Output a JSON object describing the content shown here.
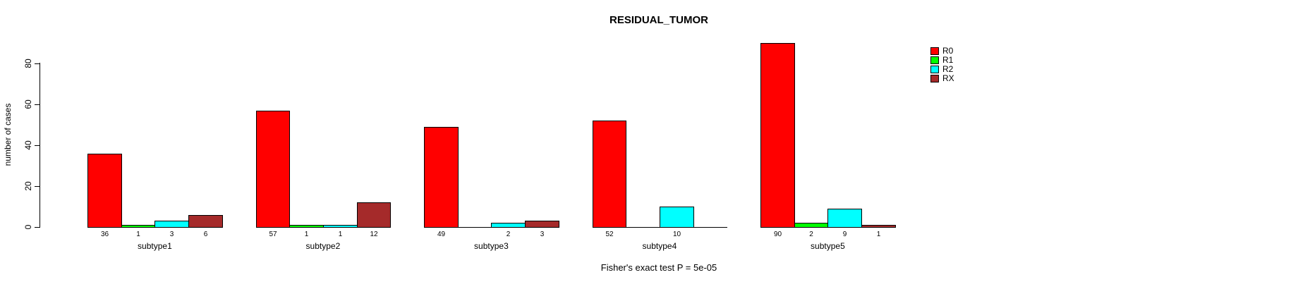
{
  "title": "RESIDUAL_TUMOR",
  "annotation": "Fisher's exact test P = 5e-05",
  "y_axis": {
    "label": "number of cases",
    "ticks": [
      "0",
      "20",
      "40",
      "60",
      "80"
    ]
  },
  "legend": {
    "items": [
      {
        "label": "R0",
        "color": "#ff0000"
      },
      {
        "label": "R1",
        "color": "#00ff00"
      },
      {
        "label": "R2",
        "color": "#00ffff"
      },
      {
        "label": "RX",
        "color": "#a52a2a"
      }
    ]
  },
  "chart_data": {
    "type": "bar",
    "title": "RESIDUAL_TUMOR",
    "xlabel": "",
    "ylabel": "number of cases",
    "ylim": [
      0,
      80
    ],
    "yticks": [
      0,
      20,
      40,
      60,
      80
    ],
    "grid": false,
    "legend_position": "right",
    "bar_outline_color": "#000000",
    "background_color": "#ffffff",
    "categories": [
      "subtype1",
      "subtype2",
      "subtype3",
      "subtype4",
      "subtype5"
    ],
    "series": [
      {
        "name": "R0",
        "color": "#ff0000",
        "values": [
          36,
          57,
          49,
          52,
          90
        ]
      },
      {
        "name": "R1",
        "color": "#00ff00",
        "values": [
          1,
          1,
          0,
          0,
          2
        ]
      },
      {
        "name": "R2",
        "color": "#00ffff",
        "values": [
          3,
          1,
          2,
          10,
          9
        ]
      },
      {
        "name": "RX",
        "color": "#a52a2a",
        "values": [
          6,
          12,
          3,
          0,
          1
        ]
      }
    ],
    "bar_value_labels": [
      [
        "36",
        "1",
        "3",
        "6"
      ],
      [
        "57",
        "1",
        "1",
        "12"
      ],
      [
        "49",
        "",
        "2",
        "3"
      ],
      [
        "52",
        "",
        "10",
        ""
      ],
      [
        "90",
        "2",
        "9",
        "1"
      ]
    ],
    "annotation": "Fisher's exact test P = 5e-05"
  }
}
